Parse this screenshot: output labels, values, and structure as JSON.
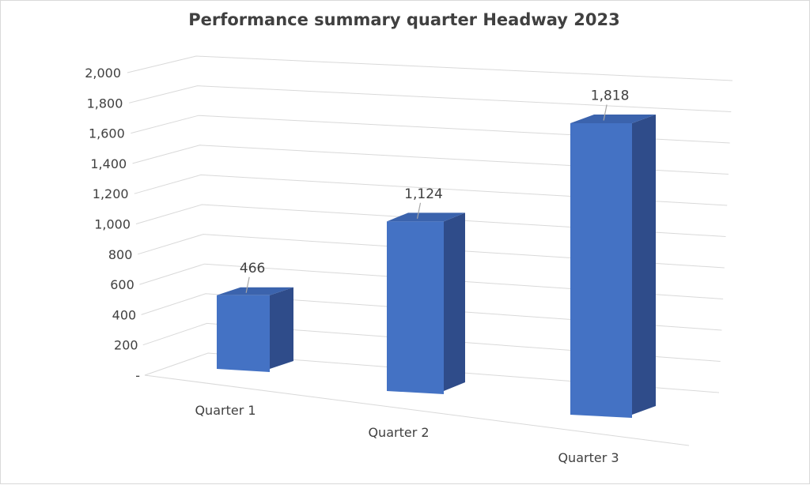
{
  "chart_data": {
    "type": "bar",
    "title": "Performance summary quarter Headway 2023",
    "categories": [
      "Quarter 1",
      "Quarter 2",
      "Quarter 3"
    ],
    "values": [
      466,
      1124,
      1818
    ],
    "data_labels": [
      "466",
      "1,124",
      "1,818"
    ],
    "y_ticks": [
      "-",
      "200",
      "400",
      "600",
      "800",
      "1,000",
      "1,200",
      "1,400",
      "1,600",
      "1,800",
      "2,000"
    ],
    "ylim": [
      0,
      2000
    ],
    "grid": true,
    "legend": "none",
    "style": "3d-clustered-column",
    "colors": {
      "front": "#4472C4",
      "side": "#2F4C8A",
      "top": "#3B63AD",
      "grid": "#d9d9d9",
      "text": "#404040"
    }
  }
}
